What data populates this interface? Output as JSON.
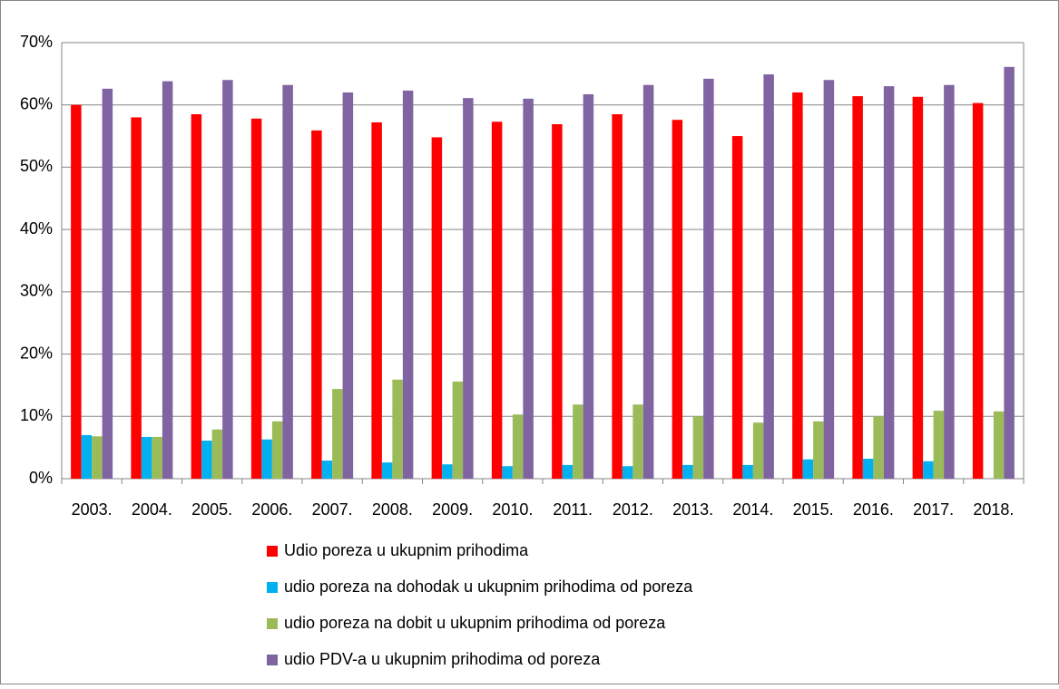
{
  "chart_data": {
    "type": "bar",
    "categories": [
      "2003.",
      "2004.",
      "2005.",
      "2006.",
      "2007.",
      "2008.",
      "2009.",
      "2010.",
      "2011.",
      "2012.",
      "2013.",
      "2014.",
      "2015.",
      "2016.",
      "2017.",
      "2018."
    ],
    "series": [
      {
        "name": "Udio poreza u ukupnim prihodima",
        "color": "#ff0000",
        "values": [
          60,
          58,
          58.5,
          57.8,
          55.9,
          57.2,
          54.8,
          57.3,
          56.9,
          58.5,
          57.6,
          55,
          62,
          61.4,
          61.3,
          60.3
        ]
      },
      {
        "name": "udio poreza na dohodak u ukupnim prihodima od poreza",
        "color": "#00b0f0",
        "values": [
          7,
          6.7,
          6.1,
          6.3,
          2.9,
          2.6,
          2.3,
          2,
          2.2,
          2,
          2.2,
          2.2,
          3.1,
          3.2,
          2.8,
          null
        ]
      },
      {
        "name": "udio poreza na dobit u ukupnim prihodima od poreza",
        "color": "#9bbb59",
        "values": [
          6.8,
          6.7,
          7.9,
          9.2,
          14.4,
          15.9,
          15.6,
          10.3,
          11.9,
          11.9,
          10,
          9,
          9.2,
          10,
          10.9,
          10.8
        ]
      },
      {
        "name": "udio PDV-a u ukupnim prihodima od poreza",
        "color": "#8064a2",
        "values": [
          62.6,
          63.8,
          64,
          63.2,
          62,
          62.3,
          61.1,
          61,
          61.7,
          63.2,
          64.2,
          64.9,
          64,
          63,
          63.2,
          66.1
        ]
      }
    ],
    "ylim": [
      0,
      70
    ],
    "yticks": [
      {
        "value": 0,
        "label": "0%"
      },
      {
        "value": 10,
        "label": "10%"
      },
      {
        "value": 20,
        "label": "20%"
      },
      {
        "value": 30,
        "label": "30%"
      },
      {
        "value": 40,
        "label": "40%"
      },
      {
        "value": 50,
        "label": "50%"
      },
      {
        "value": 60,
        "label": "60%"
      },
      {
        "value": 70,
        "label": "70%"
      }
    ],
    "grid": true,
    "legend": "bottom"
  }
}
